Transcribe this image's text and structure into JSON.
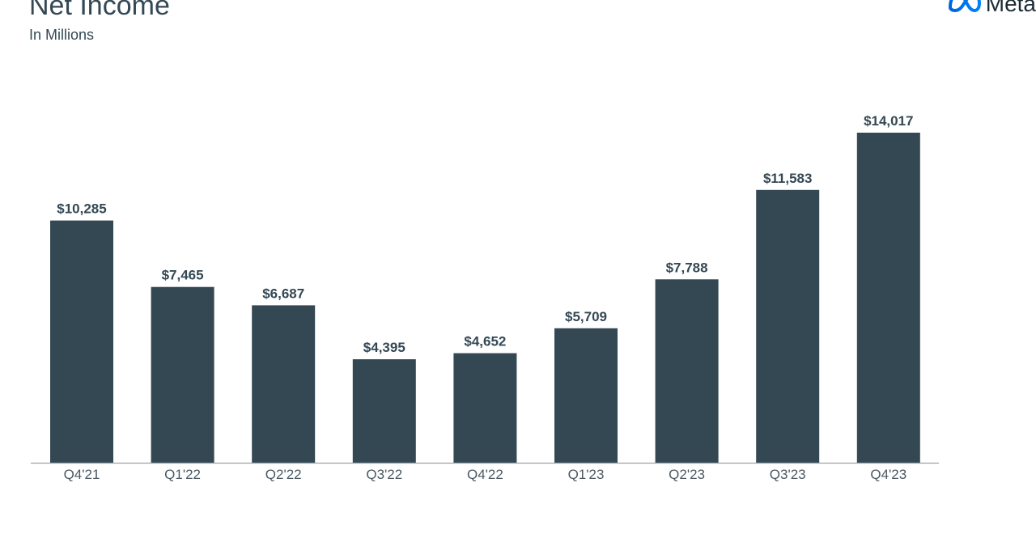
{
  "header": {
    "title": "Net Income",
    "subtitle": "In Millions",
    "logo_text": "Meta"
  },
  "colors": {
    "bar": "#344854",
    "axis": "#9aa3a8",
    "text": "#344854"
  },
  "chart_data": {
    "type": "bar",
    "title": "Net Income",
    "subtitle": "In Millions",
    "categories": [
      "Q4'21",
      "Q1'22",
      "Q2'22",
      "Q3'22",
      "Q4'22",
      "Q1'23",
      "Q2'23",
      "Q3'23",
      "Q4'23"
    ],
    "values": [
      10285,
      7465,
      6687,
      4395,
      4652,
      5709,
      7788,
      11583,
      14017
    ],
    "data_labels": [
      "$10,285",
      "$7,465",
      "$6,687",
      "$4,395",
      "$4,652",
      "$5,709",
      "$7,788",
      "$11,583",
      "$14,017"
    ],
    "ylim": [
      0,
      14017
    ],
    "grid": false,
    "legend": "none"
  }
}
